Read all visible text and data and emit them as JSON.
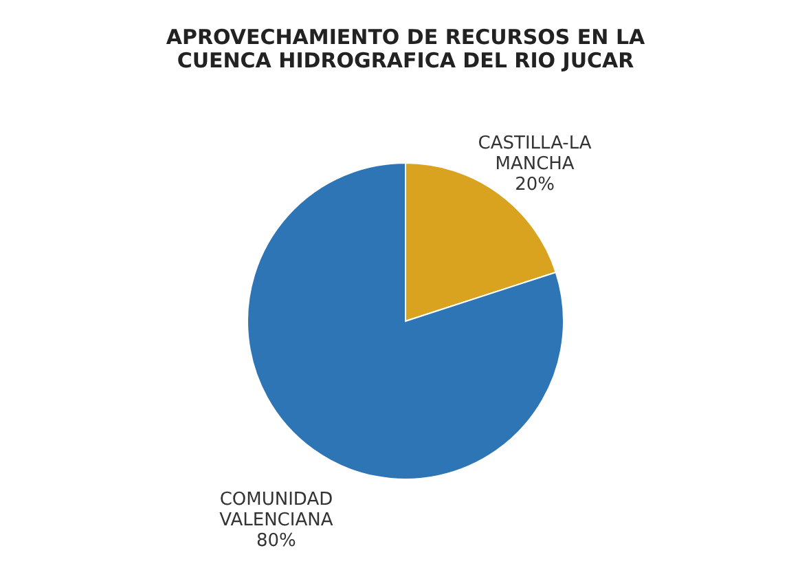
{
  "chart_data": {
    "type": "pie",
    "title": "APROVECHAMIENTO DE RECURSOS EN LA CUENCA HIDROGRAFICA DEL RIO JUCAR",
    "categories": [
      "CASTILLA-LA MANCHA",
      "COMUNIDAD VALENCIANA"
    ],
    "values": [
      20,
      80
    ],
    "colors": [
      "#d9a21f",
      "#2e75b6"
    ],
    "value_labels": [
      "20%",
      "80%"
    ],
    "legend": false
  }
}
